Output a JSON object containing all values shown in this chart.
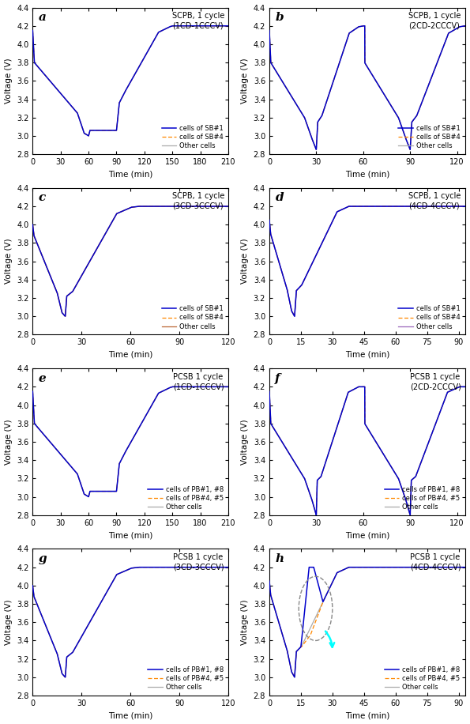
{
  "panels": [
    {
      "label": "a",
      "title": "SCPB, 1 cycle\n(1CD-1CCCV)",
      "xmax": 210,
      "xticks": [
        0,
        30,
        60,
        90,
        120,
        150,
        180,
        210
      ],
      "legend_labels": [
        "cells of SB#1",
        "cells of SB#4",
        "Other cells"
      ],
      "legend_colors": [
        "#0000cc",
        "#ff8800",
        "#aaaaaa"
      ],
      "legend_styles": [
        "-",
        "--",
        "-"
      ],
      "pack_type": "SCPB"
    },
    {
      "label": "b",
      "title": "SCPB, 1 cycle\n(2CD-2CCCV)",
      "xmax": 125,
      "xticks": [
        0,
        30,
        60,
        90,
        120
      ],
      "legend_labels": [
        "cells of SB#1",
        "cells of SB#4",
        "Other cells"
      ],
      "legend_colors": [
        "#0000cc",
        "#ff8800",
        "#aaaaaa"
      ],
      "legend_styles": [
        "-",
        "--",
        "-"
      ],
      "pack_type": "SCPB"
    },
    {
      "label": "c",
      "title": "SCPB, 1 cycle\n(3CD-3CCCV)",
      "xmax": 120,
      "xticks": [
        0,
        30,
        60,
        90,
        120
      ],
      "legend_labels": [
        "cells of SB#1",
        "cells of SB#4",
        "Other cells"
      ],
      "legend_colors": [
        "#0000cc",
        "#ff8800",
        "#bb6633"
      ],
      "legend_styles": [
        "-",
        "--",
        "-"
      ],
      "pack_type": "SCPB"
    },
    {
      "label": "d",
      "title": "SCPB, 1 cycle\n(4CD-4CCCV)",
      "xmax": 93,
      "xticks": [
        0,
        15,
        30,
        45,
        60,
        75,
        90
      ],
      "legend_labels": [
        "cells of SB#1",
        "cells of SB#4",
        "Other cells"
      ],
      "legend_colors": [
        "#0000cc",
        "#ff8800",
        "#9966bb"
      ],
      "legend_styles": [
        "-",
        "--",
        "-"
      ],
      "pack_type": "SCPB"
    },
    {
      "label": "e",
      "title": "PCSB 1 cycle\n(1CD-1CCCV)",
      "xmax": 210,
      "xticks": [
        0,
        30,
        60,
        90,
        120,
        150,
        180,
        210
      ],
      "legend_labels": [
        "cells of PB#1, #8",
        "cells of PB#4, #5",
        "Other cells"
      ],
      "legend_colors": [
        "#0000cc",
        "#ff8800",
        "#aaaaaa"
      ],
      "legend_styles": [
        "-",
        "--",
        "-"
      ],
      "pack_type": "PCSB"
    },
    {
      "label": "f",
      "title": "PCSB 1 cycle\n(2CD-2CCCV)",
      "xmax": 125,
      "xticks": [
        0,
        30,
        60,
        90,
        120
      ],
      "legend_labels": [
        "cells of PB#1, #8",
        "cells of PB#4, #5",
        "Other cells"
      ],
      "legend_colors": [
        "#0000cc",
        "#ff8800",
        "#aaaaaa"
      ],
      "legend_styles": [
        "-",
        "--",
        "-"
      ],
      "pack_type": "PCSB"
    },
    {
      "label": "g",
      "title": "PCSB 1 cycle\n(3CD-3CCCV)",
      "xmax": 120,
      "xticks": [
        0,
        30,
        60,
        90,
        120
      ],
      "legend_labels": [
        "cells of PB#1, #8",
        "cells of PB#4, #5",
        "Other cells"
      ],
      "legend_colors": [
        "#0000cc",
        "#ff8800",
        "#aaaaaa"
      ],
      "legend_styles": [
        "-",
        "--",
        "-"
      ],
      "pack_type": "PCSB"
    },
    {
      "label": "h",
      "title": "PCSB 1 cycle\n(4CD-4CCCV)",
      "xmax": 93,
      "xticks": [
        0,
        15,
        30,
        45,
        60,
        75,
        90
      ],
      "legend_labels": [
        "cells of PB#1, #8",
        "cells of PB#4, #5",
        "Other cells"
      ],
      "legend_colors": [
        "#0000cc",
        "#ff8800",
        "#aaaaaa"
      ],
      "legend_styles": [
        "-",
        "--",
        "-"
      ],
      "pack_type": "PCSB",
      "has_circle_annotation": true
    }
  ],
  "ylim": [
    2.8,
    4.4
  ],
  "yticks": [
    2.8,
    3.0,
    3.2,
    3.4,
    3.6,
    3.8,
    4.0,
    4.2,
    4.4
  ],
  "ylabel": "Voltage (V)",
  "xlabel": "Time (min)",
  "bg_color": "#ffffff"
}
